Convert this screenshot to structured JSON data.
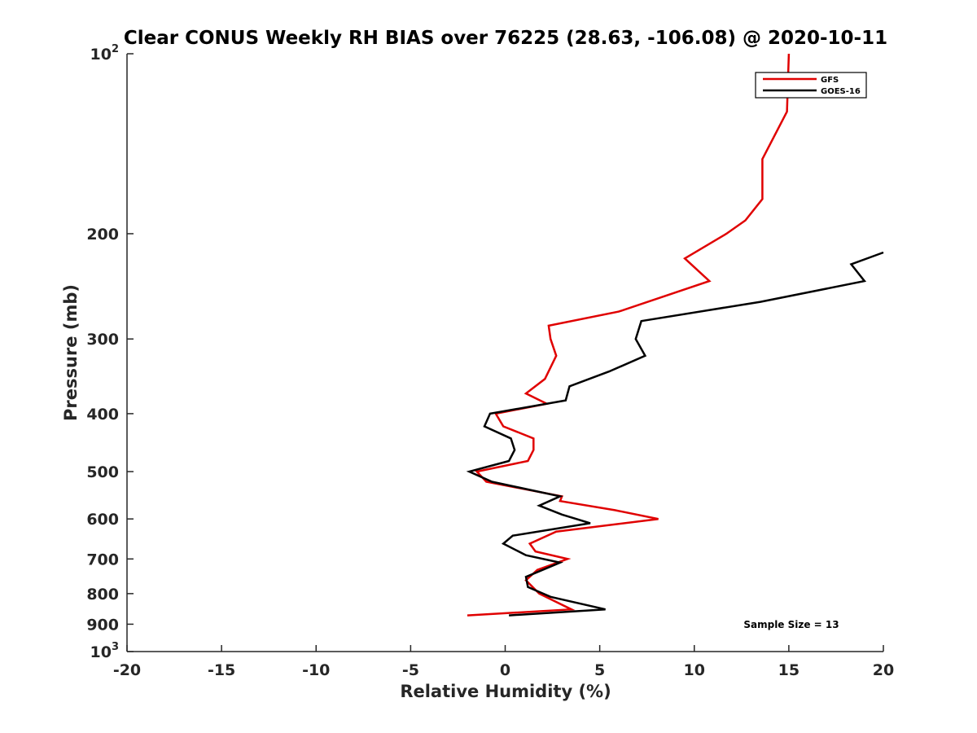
{
  "chart_data": {
    "type": "line",
    "title": "Clear CONUS Weekly RH BIAS over 76225 (28.63, -106.08) @ 2020-10-11",
    "xlabel": "Relative Humidity (%)",
    "ylabel": "Pressure (mb)",
    "xlim": [
      -20,
      20
    ],
    "ylim": [
      100,
      1000
    ],
    "y_scale": "log",
    "y_reversed": true,
    "grid": false,
    "legend_position": "top-right",
    "annotation": "Sample Size = 13",
    "x_ticks": [
      -20,
      -15,
      -10,
      -5,
      0,
      5,
      10,
      15,
      20
    ],
    "x_tick_labels": [
      "-20",
      "-15",
      "-10",
      "-5",
      "0",
      "5",
      "10",
      "15",
      "20"
    ],
    "y_ticks": [
      100,
      200,
      300,
      400,
      500,
      600,
      700,
      800,
      900,
      1000
    ],
    "y_tick_labels": [
      {
        "base": "10",
        "sup": "2"
      },
      {
        "base": "200",
        "sup": ""
      },
      {
        "base": "300",
        "sup": ""
      },
      {
        "base": "400",
        "sup": ""
      },
      {
        "base": "500",
        "sup": ""
      },
      {
        "base": "600",
        "sup": ""
      },
      {
        "base": "700",
        "sup": ""
      },
      {
        "base": "800",
        "sup": ""
      },
      {
        "base": "900",
        "sup": ""
      },
      {
        "base": "10",
        "sup": "3"
      }
    ],
    "series": [
      {
        "name": "GFS",
        "color": "#e00000",
        "points": [
          [
            15.0,
            100
          ],
          [
            14.9,
            125
          ],
          [
            13.6,
            150
          ],
          [
            13.6,
            175
          ],
          [
            12.7,
            190
          ],
          [
            11.7,
            200
          ],
          [
            9.5,
            220
          ],
          [
            10.8,
            240
          ],
          [
            6.0,
            270
          ],
          [
            2.3,
            285
          ],
          [
            2.4,
            300
          ],
          [
            2.7,
            320
          ],
          [
            2.1,
            350
          ],
          [
            1.1,
            370
          ],
          [
            2.2,
            385
          ],
          [
            -0.5,
            400
          ],
          [
            -0.1,
            420
          ],
          [
            1.5,
            440
          ],
          [
            1.5,
            460
          ],
          [
            1.2,
            480
          ],
          [
            -1.5,
            500
          ],
          [
            -1.0,
            520
          ],
          [
            3.0,
            550
          ],
          [
            2.9,
            560
          ],
          [
            5.8,
            580
          ],
          [
            8.1,
            600
          ],
          [
            2.7,
            630
          ],
          [
            1.3,
            660
          ],
          [
            1.6,
            680
          ],
          [
            3.3,
            700
          ],
          [
            1.7,
            730
          ],
          [
            1.1,
            760
          ],
          [
            1.8,
            800
          ],
          [
            3.5,
            850
          ],
          [
            -2.0,
            870
          ]
        ]
      },
      {
        "name": "GOES-16",
        "color": "#000000",
        "points": [
          [
            20.0,
            215
          ],
          [
            18.3,
            225
          ],
          [
            19.0,
            240
          ],
          [
            13.5,
            260
          ],
          [
            7.2,
            280
          ],
          [
            6.9,
            300
          ],
          [
            7.4,
            320
          ],
          [
            5.5,
            340
          ],
          [
            3.4,
            360
          ],
          [
            3.2,
            380
          ],
          [
            -0.8,
            400
          ],
          [
            -1.1,
            420
          ],
          [
            0.3,
            440
          ],
          [
            0.5,
            460
          ],
          [
            0.2,
            480
          ],
          [
            -1.9,
            500
          ],
          [
            -0.7,
            520
          ],
          [
            2.9,
            550
          ],
          [
            1.8,
            570
          ],
          [
            3.0,
            590
          ],
          [
            4.5,
            610
          ],
          [
            0.4,
            640
          ],
          [
            -0.1,
            660
          ],
          [
            1.1,
            690
          ],
          [
            2.9,
            710
          ],
          [
            1.1,
            750
          ],
          [
            1.2,
            780
          ],
          [
            2.4,
            810
          ],
          [
            5.3,
            850
          ],
          [
            0.2,
            870
          ]
        ]
      }
    ]
  }
}
